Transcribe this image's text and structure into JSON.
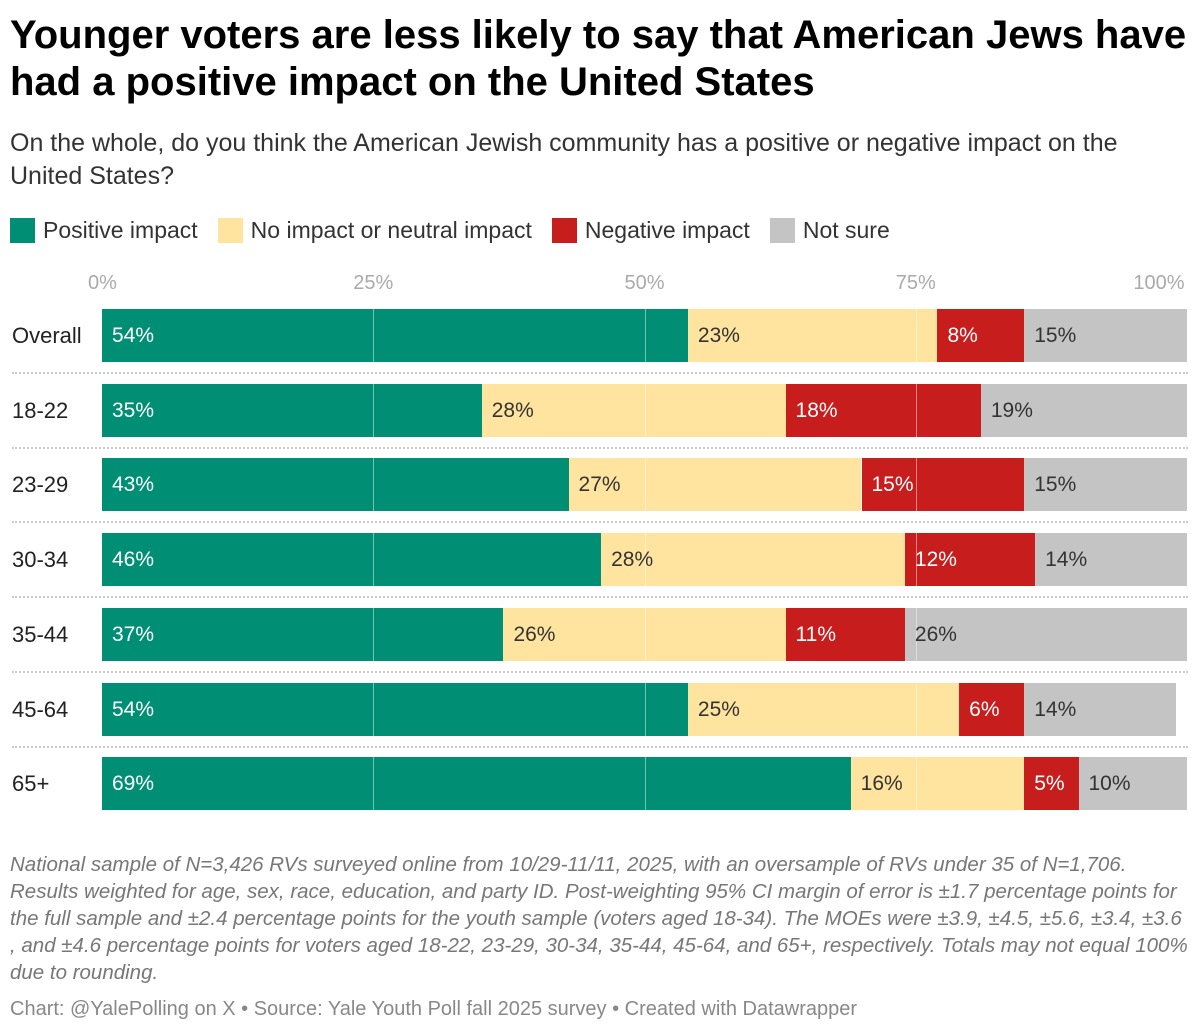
{
  "title": "Younger voters are less likely to say that American Jews have had a positive impact on the United States",
  "subtitle": "On the whole, do you think the American Jewish community has a positive or negative impact on the United States?",
  "notes": "National sample of N=3,426 RVs surveyed online from 10/29-11/11, 2025, with an oversample of RVs under 35 of N=1,706. Results weighted for age, sex, race, education, and party ID. Post-weighting 95% CI margin of error is ±1.7 percentage points for the full sample and ±2.4 percentage points for the youth sample (voters aged 18-34). The MOEs were ±3.9, ±4.5, ±5.6, ±3.4, ±3.6 , and ±4.6 percentage points for voters aged 18-22, 23-29, 30-34, 35-44, 45-64, and 65+, respectively. Totals may not equal 100% due to rounding.",
  "footer": "Chart: @YalePolling on X • Source: Yale Youth Poll fall 2025 survey • Created with Datawrapper",
  "chart_data": {
    "type": "stacked-bar-horizontal",
    "xlim": [
      0,
      100
    ],
    "ticks": [
      "0%",
      "25%",
      "50%",
      "75%",
      "100%"
    ],
    "tick_values": [
      0,
      25,
      50,
      75,
      100
    ],
    "legend_placement": "top-left",
    "categories": [
      "Overall",
      "18-22",
      "23-29",
      "30-34",
      "35-44",
      "45-64",
      "65+"
    ],
    "series": [
      {
        "name": "Positive impact",
        "color": "#008f74",
        "label_color": "#ffffff",
        "values": [
          54,
          35,
          43,
          46,
          37,
          54,
          69
        ]
      },
      {
        "name": "No impact or neutral impact",
        "color": "#fee49f",
        "label_color": "#333333",
        "values": [
          23,
          28,
          27,
          28,
          26,
          25,
          16
        ]
      },
      {
        "name": "Negative impact",
        "color": "#c71e1d",
        "label_color": "#ffffff",
        "values": [
          8,
          18,
          15,
          12,
          11,
          6,
          5
        ]
      },
      {
        "name": "Not sure",
        "color": "#c4c4c4",
        "label_color": "#333333",
        "values": [
          15,
          19,
          15,
          14,
          26,
          14,
          10
        ]
      }
    ]
  }
}
